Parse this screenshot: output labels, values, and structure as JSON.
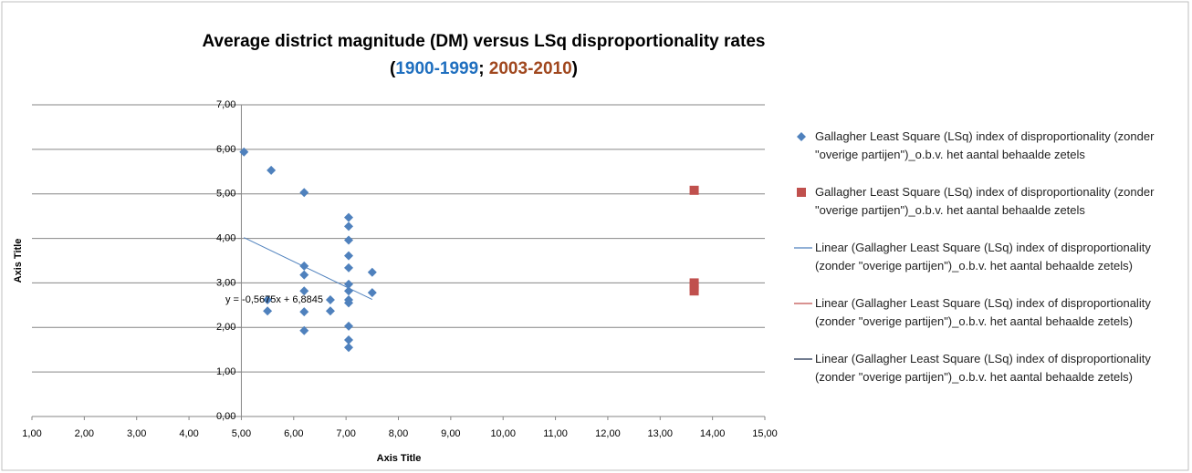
{
  "chart_data": {
    "type": "scatter",
    "title": "Average district magnitude (DM) versus LSq disproportionality rates",
    "subtitle_segments": [
      {
        "text": "(",
        "color": "#000000"
      },
      {
        "text": "1900-1999",
        "color": "#1f6fbf"
      },
      {
        "text": "; ",
        "color": "#000000"
      },
      {
        "text": "2003-2010",
        "color": "#a0471e"
      },
      {
        "text": ")",
        "color": "#000000"
      }
    ],
    "x_label": "Axis Title",
    "y_label": "Axis Title",
    "xlim": [
      1,
      15
    ],
    "ylim": [
      0,
      7
    ],
    "xticks": [
      {
        "value": 1,
        "label": "1,00"
      },
      {
        "value": 2,
        "label": "2,00"
      },
      {
        "value": 3,
        "label": "3,00"
      },
      {
        "value": 4,
        "label": "4,00"
      },
      {
        "value": 5,
        "label": "5,00"
      },
      {
        "value": 6,
        "label": "6,00"
      },
      {
        "value": 7,
        "label": "7,00"
      },
      {
        "value": 8,
        "label": "8,00"
      },
      {
        "value": 9,
        "label": "9,00"
      },
      {
        "value": 10,
        "label": "10,00"
      },
      {
        "value": 11,
        "label": "11,00"
      },
      {
        "value": 12,
        "label": "12,00"
      },
      {
        "value": 13,
        "label": "13,00"
      },
      {
        "value": 14,
        "label": "14,00"
      },
      {
        "value": 15,
        "label": "15,00"
      }
    ],
    "yticks": [
      {
        "value": 0,
        "label": "0,00"
      },
      {
        "value": 1,
        "label": "1,00"
      },
      {
        "value": 2,
        "label": "2,00"
      },
      {
        "value": 3,
        "label": "3,00"
      },
      {
        "value": 4,
        "label": "4,00"
      },
      {
        "value": 5,
        "label": "5,00"
      },
      {
        "value": 6,
        "label": "6,00"
      },
      {
        "value": 7,
        "label": "7,00"
      }
    ],
    "grid": true,
    "legend": "right",
    "series": [
      {
        "name": "Gallagher Least Square (LSq) index of disproportionality (zonder \"overige partijen\")_o.b.v. het aantal behaalde zetels",
        "color": "#4f81bd",
        "marker": "diamond",
        "x": [
          5.05,
          5.57,
          5.5,
          5.5,
          6.2,
          6.2,
          6.2,
          6.2,
          6.2,
          6.2,
          6.7,
          6.7,
          7.05,
          7.05,
          7.05,
          7.05,
          7.05,
          7.05,
          7.05,
          7.05,
          7.05,
          7.05,
          7.05,
          7.05,
          7.5,
          7.5
        ],
        "values": [
          5.94,
          5.53,
          2.37,
          2.62,
          5.03,
          3.38,
          3.18,
          2.82,
          2.35,
          1.93,
          2.62,
          2.37,
          4.47,
          4.27,
          3.96,
          3.61,
          3.34,
          2.97,
          2.82,
          2.62,
          2.55,
          2.03,
          1.72,
          1.55,
          3.24,
          2.78
        ]
      },
      {
        "name": "Gallagher Least Square (LSq) index of disproportionality (zonder \"overige partijen\")_o.b.v. het aantal behaalde zetels",
        "color": "#c0504d",
        "marker": "square",
        "x": [
          13.65,
          13.65,
          13.65,
          13.65
        ],
        "values": [
          5.08,
          3.0,
          2.92,
          2.82
        ]
      }
    ],
    "trendlines": [
      {
        "name": "Linear (Gallagher Least Square (LSq) index of disproportionality (zonder \"overige partijen\")_o.b.v. het aantal behaalde zetels)",
        "color": "#4f81bd",
        "series": 0,
        "slope": -0.5675,
        "intercept": 6.8845,
        "label": "y = -0,5675x + 6,8845"
      },
      {
        "name": "Linear (Gallagher Least Square (LSq) index of disproportionality (zonder \"overige partijen\")_o.b.v. het aantal behaalde zetels)",
        "color": "#c0504d"
      },
      {
        "name": "Linear (Gallagher Least Square (LSq) index of disproportionality (zonder \"overige partijen\")_o.b.v. het aantal behaalde zetels)",
        "color": "#1f2d4d"
      }
    ]
  }
}
